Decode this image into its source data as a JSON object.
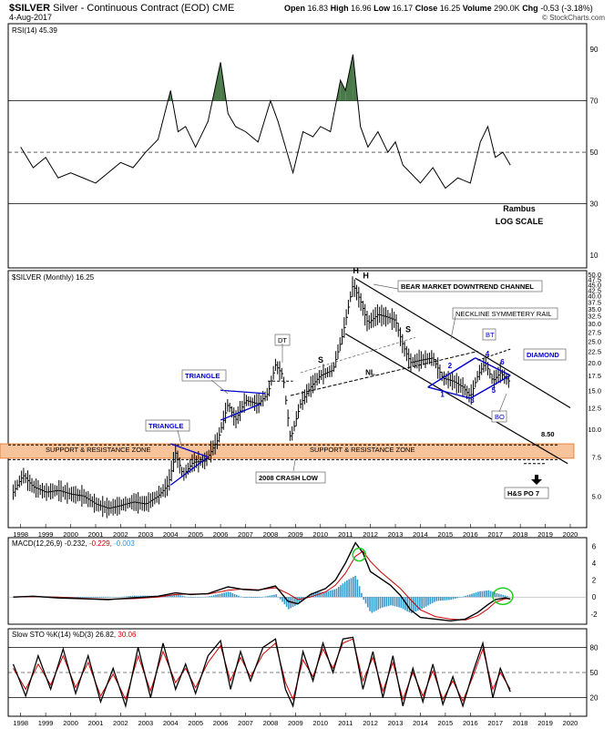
{
  "header": {
    "symbol": "$SILVER",
    "name": "Silver - Continuous Contract (EOD)",
    "exchange": "CME",
    "date": "4-Aug-2017",
    "open_label": "Open",
    "open": "16.83",
    "high_label": "High",
    "high": "16.96",
    "low_label": "Low",
    "low": "16.17",
    "close_label": "Close",
    "close": "16.25",
    "volume_label": "Volume",
    "volume": "290.0K",
    "chg_label": "Chg",
    "chg": "-0.53 (-3.18%)",
    "watermark": "© StockCharts.com"
  },
  "colors": {
    "price": "#000000",
    "blue": "#0000cc",
    "rsi_fill": "#4a7a4a",
    "macd_signal": "#cc0000",
    "histogram": "#3399cc",
    "zone_fill": "#f7c39b",
    "zone_stroke": "#e07020",
    "green_circle": "#22cc22"
  },
  "chart_data": [
    {
      "type": "line",
      "panel": "rsi",
      "label": "RSI(14) 45.39",
      "yticks": [
        10,
        30,
        50,
        70,
        90
      ],
      "ylim": [
        5,
        100
      ],
      "levels": [
        30,
        50,
        70
      ],
      "x": [
        1998.0,
        1998.5,
        1999.0,
        1999.5,
        2000.0,
        2000.5,
        2001.0,
        2001.5,
        2002.0,
        2002.5,
        2003.0,
        2003.5,
        2004.0,
        2004.3,
        2004.6,
        2005.0,
        2005.5,
        2006.0,
        2006.3,
        2006.6,
        2007.0,
        2007.5,
        2008.0,
        2008.3,
        2008.6,
        2008.9,
        2009.3,
        2009.7,
        2010.0,
        2010.4,
        2010.8,
        2011.0,
        2011.3,
        2011.6,
        2011.9,
        2012.3,
        2012.7,
        2013.0,
        2013.3,
        2013.6,
        2014.0,
        2014.5,
        2015.0,
        2015.5,
        2016.0,
        2016.4,
        2016.7,
        2017.0,
        2017.3,
        2017.6
      ],
      "values": [
        52,
        44,
        48,
        40,
        42,
        40,
        38,
        42,
        46,
        44,
        50,
        55,
        74,
        58,
        60,
        52,
        62,
        85,
        65,
        60,
        58,
        54,
        70,
        62,
        52,
        42,
        58,
        56,
        60,
        58,
        78,
        74,
        88,
        60,
        52,
        58,
        50,
        54,
        45,
        42,
        38,
        44,
        36,
        40,
        38,
        54,
        60,
        48,
        50,
        45
      ]
    },
    {
      "type": "line",
      "panel": "price",
      "label": "$SILVER (Monthly) 16.25",
      "scale": "log",
      "ylim": [
        3.6,
        52
      ],
      "yticks": [
        5.0,
        7.5,
        10.0,
        12.5,
        15.0,
        17.5,
        20.0,
        22.5,
        25.0,
        27.5,
        30.0,
        32.5,
        35.0,
        37.5,
        40.0,
        42.5,
        45.0,
        47.5,
        50.0
      ],
      "xticks": [
        "1998",
        "1999",
        "2000",
        "2001",
        "2002",
        "2003",
        "2004",
        "2005",
        "2006",
        "2007",
        "2008",
        "2009",
        "2010",
        "2011",
        "2012",
        "2013",
        "2014",
        "2015",
        "2016",
        "2017",
        "2018",
        "2019",
        "2020"
      ],
      "x": [
        1997.7,
        1998.1,
        1998.5,
        1999.0,
        1999.5,
        2000.0,
        2000.5,
        2001.0,
        2001.5,
        2001.9,
        2002.5,
        2003.0,
        2003.5,
        2003.9,
        2004.2,
        2004.5,
        2004.9,
        2005.4,
        2005.9,
        2006.3,
        2006.6,
        2007.0,
        2007.5,
        2007.9,
        2008.2,
        2008.5,
        2008.8,
        2009.2,
        2009.6,
        2010.0,
        2010.5,
        2010.9,
        2011.3,
        2011.6,
        2011.9,
        2012.3,
        2012.7,
        2013.0,
        2013.3,
        2013.6,
        2014.0,
        2014.5,
        2014.9,
        2015.3,
        2015.7,
        2016.0,
        2016.3,
        2016.6,
        2016.9,
        2017.2,
        2017.6
      ],
      "values": [
        5.2,
        6.2,
        5.5,
        5.2,
        5.3,
        5.1,
        5.0,
        4.6,
        4.4,
        4.5,
        4.7,
        4.6,
        5.0,
        5.6,
        7.8,
        6.2,
        7.1,
        7.2,
        9.0,
        13.0,
        11.0,
        13.5,
        13.0,
        14.5,
        19.5,
        17.5,
        9.0,
        13.0,
        15.5,
        17.5,
        18.5,
        27.0,
        45.0,
        38.0,
        30.0,
        33.0,
        32.0,
        31.0,
        24.0,
        20.0,
        20.5,
        21.0,
        17.0,
        16.5,
        15.5,
        14.0,
        17.5,
        20.0,
        16.5,
        18.0,
        16.25
      ],
      "annotations": {
        "h1": "H",
        "h2": "H",
        "s1": "S",
        "s2": "S",
        "dt": "DT",
        "bt": "BT",
        "bo": "BO",
        "nl": "NL",
        "bear_channel": "BEAR MARKET DOWNTREND CHANNEL",
        "neckline": "NECKLINE SYMMETERY RAIL",
        "diamond": "DIAMOND",
        "triangle1": "TRIANGLE",
        "triangle2": "TRIANGLE",
        "sr_left": "SUPPORT & RESISTANCE ZONE",
        "sr_right": "SUPPORT & RESISTANCE ZONE",
        "crash": "2008 CRASH LOW",
        "level": "8.50",
        "hs_po": "H&S PO 7",
        "rambus": "Rambus",
        "log_scale": "LOG SCALE",
        "n1": "1",
        "n2": "2",
        "n3": "3",
        "n4": "4",
        "n5": "5",
        "n6": "6"
      }
    },
    {
      "type": "line",
      "panel": "macd",
      "label": "MACD(12,26,9) -0.232, -0.229, -0.003",
      "label_main": "MACD(12,26,9)",
      "label_v1": "-0.232,",
      "label_v2": "-0.229,",
      "label_v3": "-0.003",
      "yticks": [
        -2,
        0,
        2,
        4,
        6
      ],
      "ylim": [
        -3.2,
        7
      ],
      "x": [
        1997.7,
        1998.5,
        1999.5,
        2000.5,
        2001.5,
        2002.5,
        2003.5,
        2004.2,
        2004.8,
        2005.5,
        2006.3,
        2006.9,
        2007.5,
        2008.2,
        2008.7,
        2009.1,
        2009.6,
        2010.2,
        2010.6,
        2011.0,
        2011.4,
        2011.7,
        2012.0,
        2012.4,
        2012.8,
        2013.2,
        2013.6,
        2014.0,
        2014.6,
        2015.2,
        2015.8,
        2016.3,
        2016.7,
        2017.0,
        2017.4,
        2017.6
      ],
      "macd": [
        0.0,
        0.1,
        -0.1,
        -0.2,
        -0.3,
        -0.1,
        0.1,
        0.5,
        0.3,
        0.4,
        1.2,
        0.9,
        0.8,
        1.3,
        -0.5,
        -0.8,
        0.3,
        1.0,
        2.0,
        4.0,
        6.4,
        5.2,
        3.0,
        2.2,
        1.4,
        0.2,
        -1.5,
        -2.4,
        -2.6,
        -2.8,
        -2.6,
        -1.8,
        -0.9,
        -0.3,
        -0.1,
        -0.23
      ],
      "signal": [
        0.0,
        0.05,
        0.0,
        -0.15,
        -0.25,
        -0.2,
        0.0,
        0.3,
        0.35,
        0.35,
        0.8,
        0.95,
        0.85,
        1.1,
        0.4,
        -0.3,
        0.0,
        0.6,
        1.4,
        2.8,
        4.8,
        5.4,
        4.2,
        3.0,
        2.0,
        1.0,
        -0.3,
        -1.5,
        -2.3,
        -2.6,
        -2.7,
        -2.2,
        -1.4,
        -0.6,
        -0.2,
        -0.23
      ]
    },
    {
      "type": "line",
      "panel": "sto",
      "label": "Slow STO %K(14) %D(3) 26.82, 30.06",
      "label_main": "Slow STO %K(14) %D(3)",
      "label_v1": "26.82,",
      "label_v2": "30.06",
      "yticks": [
        20,
        50,
        80
      ],
      "ylim": [
        0,
        100
      ],
      "x": [
        1997.7,
        1998.2,
        1998.7,
        1999.2,
        1999.7,
        2000.2,
        2000.7,
        2001.2,
        2001.7,
        2002.2,
        2002.7,
        2003.2,
        2003.7,
        2004.2,
        2004.6,
        2005.0,
        2005.5,
        2006.0,
        2006.4,
        2006.8,
        2007.2,
        2007.7,
        2008.2,
        2008.6,
        2008.9,
        2009.3,
        2009.7,
        2010.1,
        2010.5,
        2010.9,
        2011.3,
        2011.7,
        2012.1,
        2012.5,
        2012.9,
        2013.3,
        2013.7,
        2014.1,
        2014.5,
        2014.9,
        2015.3,
        2015.7,
        2016.1,
        2016.5,
        2016.9,
        2017.2,
        2017.6
      ],
      "k": [
        60,
        22,
        70,
        30,
        78,
        25,
        70,
        15,
        55,
        10,
        80,
        20,
        85,
        30,
        60,
        25,
        70,
        88,
        30,
        75,
        40,
        80,
        90,
        30,
        10,
        75,
        40,
        85,
        50,
        90,
        92,
        30,
        75,
        20,
        70,
        10,
        55,
        15,
        60,
        12,
        45,
        10,
        50,
        85,
        20,
        55,
        27
      ],
      "d": [
        55,
        30,
        60,
        35,
        70,
        32,
        62,
        22,
        48,
        18,
        70,
        28,
        75,
        38,
        55,
        32,
        62,
        82,
        40,
        68,
        45,
        72,
        85,
        38,
        18,
        65,
        45,
        78,
        55,
        85,
        90,
        40,
        68,
        28,
        62,
        18,
        50,
        22,
        52,
        18,
        40,
        16,
        45,
        78,
        30,
        50,
        30
      ]
    }
  ]
}
